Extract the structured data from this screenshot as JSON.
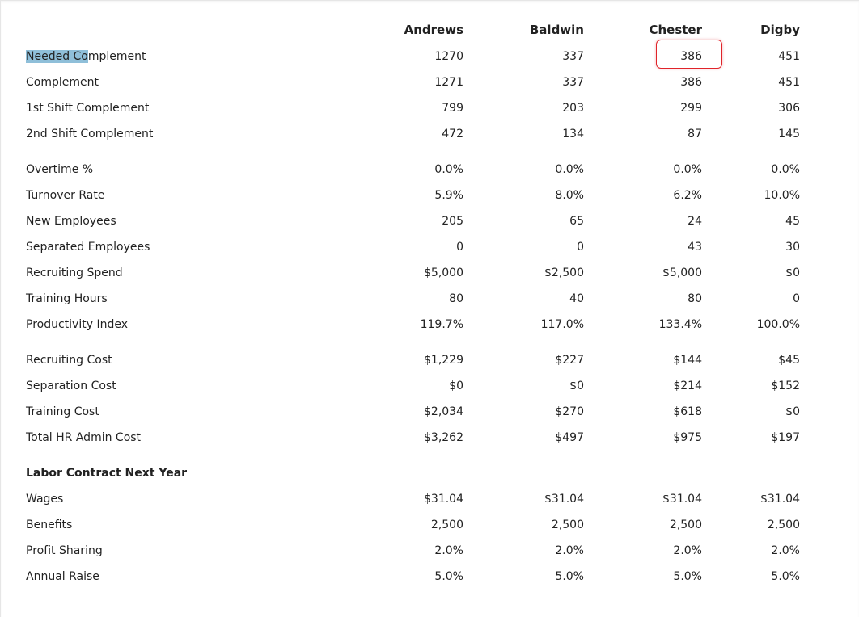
{
  "columns": [
    "Andrews",
    "Baldwin",
    "Chester",
    "Digby"
  ],
  "first_label": {
    "highlighted": "Needed Co",
    "rest": "mplement"
  },
  "groups": [
    {
      "rows": [
        {
          "label": "Needed Complement",
          "values": [
            "1270",
            "337",
            "386",
            "451"
          ]
        },
        {
          "label": "Complement",
          "values": [
            "1271",
            "337",
            "386",
            "451"
          ]
        },
        {
          "label": "1st Shift Complement",
          "values": [
            "799",
            "203",
            "299",
            "306"
          ]
        },
        {
          "label": "2nd Shift Complement",
          "values": [
            "472",
            "134",
            "87",
            "145"
          ]
        }
      ]
    },
    {
      "rows": [
        {
          "label": "Overtime %",
          "values": [
            "0.0%",
            "0.0%",
            "0.0%",
            "0.0%"
          ]
        },
        {
          "label": "Turnover Rate",
          "values": [
            "5.9%",
            "8.0%",
            "6.2%",
            "10.0%"
          ]
        },
        {
          "label": "New Employees",
          "values": [
            "205",
            "65",
            "24",
            "45"
          ]
        },
        {
          "label": "Separated Employees",
          "values": [
            "0",
            "0",
            "43",
            "30"
          ]
        },
        {
          "label": "Recruiting Spend",
          "values": [
            "$5,000",
            "$2,500",
            "$5,000",
            "$0"
          ]
        },
        {
          "label": "Training Hours",
          "values": [
            "80",
            "40",
            "80",
            "0"
          ]
        },
        {
          "label": "Productivity Index",
          "values": [
            "119.7%",
            "117.0%",
            "133.4%",
            "100.0%"
          ]
        }
      ]
    },
    {
      "rows": [
        {
          "label": "Recruiting Cost",
          "values": [
            "$1,229",
            "$227",
            "$144",
            "$45"
          ]
        },
        {
          "label": "Separation Cost",
          "values": [
            "$0",
            "$0",
            "$214",
            "$152"
          ]
        },
        {
          "label": "Training Cost",
          "values": [
            "$2,034",
            "$270",
            "$618",
            "$0"
          ]
        },
        {
          "label": "Total HR Admin Cost",
          "values": [
            "$3,262",
            "$497",
            "$975",
            "$197"
          ]
        }
      ]
    },
    {
      "title": "Labor Contract Next Year",
      "rows": [
        {
          "label": "Wages",
          "values": [
            "$31.04",
            "$31.04",
            "$31.04",
            "$31.04"
          ]
        },
        {
          "label": "Benefits",
          "values": [
            "2,500",
            "2,500",
            "2,500",
            "2,500"
          ]
        },
        {
          "label": "Profit Sharing",
          "values": [
            "2.0%",
            "2.0%",
            "2.0%",
            "2.0%"
          ]
        },
        {
          "label": "Annual Raise",
          "values": [
            "5.0%",
            "5.0%",
            "5.0%",
            "5.0%"
          ]
        }
      ]
    }
  ],
  "colors": {
    "highlight_box": "#e0242a",
    "text_selection": "#8fbfd9"
  }
}
